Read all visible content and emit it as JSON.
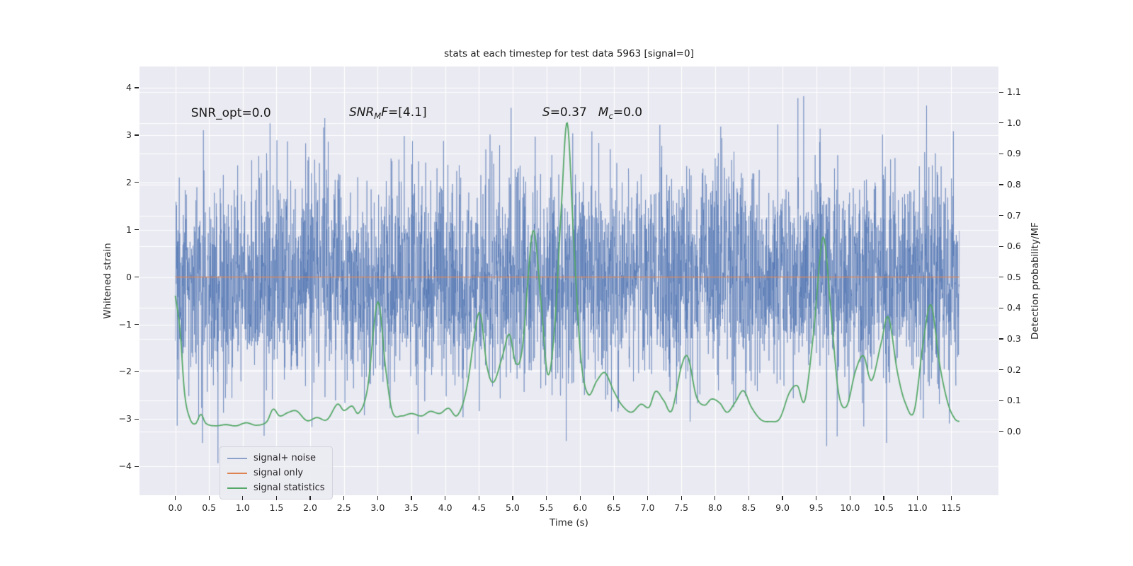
{
  "chart_data": {
    "type": "line",
    "title": "stats at each timestep for test data 5963 [signal=0]",
    "xlabel": "Time (s)",
    "ylabel_left": "Whitened strain",
    "ylabel_right": "Detection probability/MF",
    "xlim": [
      -0.53,
      12.2
    ],
    "ylim_left": [
      -4.61,
      4.45
    ],
    "ylim_right": [
      -0.207,
      1.183
    ],
    "grid": true,
    "colors": {
      "plot_bg": "#EAEAF2",
      "grid": "#FFFFFF",
      "text": "#262626",
      "noise_blue": "#4C72B0",
      "signal_orange": "#DD8452",
      "stats_green": "#55A868"
    },
    "xticks": [
      {
        "v": 0.0,
        "label": "0.0"
      },
      {
        "v": 0.5,
        "label": "0.5"
      },
      {
        "v": 1.0,
        "label": "1.0"
      },
      {
        "v": 1.5,
        "label": "1.5"
      },
      {
        "v": 2.0,
        "label": "2.0"
      },
      {
        "v": 2.5,
        "label": "2.5"
      },
      {
        "v": 3.0,
        "label": "3.0"
      },
      {
        "v": 3.5,
        "label": "3.5"
      },
      {
        "v": 4.0,
        "label": "4.0"
      },
      {
        "v": 4.5,
        "label": "4.5"
      },
      {
        "v": 5.0,
        "label": "5.0"
      },
      {
        "v": 5.5,
        "label": "5.5"
      },
      {
        "v": 6.0,
        "label": "6.0"
      },
      {
        "v": 6.5,
        "label": "6.5"
      },
      {
        "v": 7.0,
        "label": "7.0"
      },
      {
        "v": 7.5,
        "label": "7.5"
      },
      {
        "v": 8.0,
        "label": "8.0"
      },
      {
        "v": 8.5,
        "label": "8.5"
      },
      {
        "v": 9.0,
        "label": "9.0"
      },
      {
        "v": 9.5,
        "label": "9.5"
      },
      {
        "v": 10.0,
        "label": "10.0"
      },
      {
        "v": 10.5,
        "label": "10.5"
      },
      {
        "v": 11.0,
        "label": "11.0"
      },
      {
        "v": 11.5,
        "label": "11.5"
      }
    ],
    "yticks_left": [
      {
        "v": 4,
        "label": "4"
      },
      {
        "v": 3,
        "label": "3"
      },
      {
        "v": 2,
        "label": "2"
      },
      {
        "v": 1,
        "label": "1"
      },
      {
        "v": 0,
        "label": "0"
      },
      {
        "v": -1,
        "label": "−1"
      },
      {
        "v": -2,
        "label": "−2"
      },
      {
        "v": -3,
        "label": "−3"
      },
      {
        "v": -4,
        "label": "−4"
      }
    ],
    "yticks_right": [
      {
        "v": 1.1,
        "label": "1.1"
      },
      {
        "v": 1.0,
        "label": "1.0"
      },
      {
        "v": 0.9,
        "label": "0.9"
      },
      {
        "v": 0.8,
        "label": "0.8"
      },
      {
        "v": 0.7,
        "label": "0.7"
      },
      {
        "v": 0.6,
        "label": "0.6"
      },
      {
        "v": 0.5,
        "label": "0.5"
      },
      {
        "v": 0.4,
        "label": "0.4"
      },
      {
        "v": 0.3,
        "label": "0.3"
      },
      {
        "v": 0.2,
        "label": "0.2"
      },
      {
        "v": 0.1,
        "label": "0.1"
      },
      {
        "v": 0.0,
        "label": "0.0"
      }
    ],
    "annotations": [
      {
        "name": "snr-opt",
        "parts": [
          "SNR_opt=0.0"
        ],
        "fx": 0.06,
        "fy": 0.109
      },
      {
        "name": "snr-mf",
        "parts": [
          "SNR",
          "M",
          "F",
          "=[4.1]"
        ],
        "fx": 0.244,
        "fy": 0.109
      },
      {
        "name": "stat-values",
        "parts": [
          "S",
          "=0.37",
          "M",
          "c",
          "=0.0"
        ],
        "fx": 0.469,
        "fy": 0.109
      }
    ],
    "legend": {
      "position": "lower left"
    },
    "series": [
      {
        "name": "signal+ noise",
        "axis": "left",
        "color": "#4C72B0",
        "alpha": 0.6,
        "t_start": 0.0,
        "t_end": 11.62,
        "noise": {
          "seed": 5963,
          "n": 4096,
          "std": 1.1
        }
      },
      {
        "name": "signal only",
        "axis": "left",
        "color": "#DD8452",
        "t_start": 0.0,
        "t_end": 11.62,
        "value": 0.0
      },
      {
        "name": "signal statistics",
        "axis": "right",
        "color": "#55A868",
        "points": [
          [
            0.0,
            0.44
          ],
          [
            0.07,
            0.33
          ],
          [
            0.14,
            0.12
          ],
          [
            0.22,
            0.04
          ],
          [
            0.3,
            0.025
          ],
          [
            0.38,
            0.055
          ],
          [
            0.46,
            0.025
          ],
          [
            0.6,
            0.018
          ],
          [
            0.75,
            0.022
          ],
          [
            0.9,
            0.018
          ],
          [
            1.05,
            0.028
          ],
          [
            1.2,
            0.02
          ],
          [
            1.35,
            0.03
          ],
          [
            1.45,
            0.072
          ],
          [
            1.55,
            0.05
          ],
          [
            1.68,
            0.062
          ],
          [
            1.8,
            0.066
          ],
          [
            1.95,
            0.035
          ],
          [
            2.1,
            0.045
          ],
          [
            2.25,
            0.038
          ],
          [
            2.4,
            0.088
          ],
          [
            2.5,
            0.068
          ],
          [
            2.62,
            0.082
          ],
          [
            2.72,
            0.06
          ],
          [
            2.85,
            0.14
          ],
          [
            3.0,
            0.42
          ],
          [
            3.12,
            0.2
          ],
          [
            3.22,
            0.062
          ],
          [
            3.35,
            0.05
          ],
          [
            3.5,
            0.058
          ],
          [
            3.65,
            0.05
          ],
          [
            3.78,
            0.065
          ],
          [
            3.92,
            0.058
          ],
          [
            4.05,
            0.075
          ],
          [
            4.18,
            0.052
          ],
          [
            4.32,
            0.14
          ],
          [
            4.5,
            0.385
          ],
          [
            4.62,
            0.21
          ],
          [
            4.72,
            0.16
          ],
          [
            4.85,
            0.245
          ],
          [
            4.95,
            0.315
          ],
          [
            5.05,
            0.22
          ],
          [
            5.15,
            0.28
          ],
          [
            5.3,
            0.65
          ],
          [
            5.42,
            0.42
          ],
          [
            5.52,
            0.185
          ],
          [
            5.62,
            0.33
          ],
          [
            5.72,
            0.72
          ],
          [
            5.81,
            1.0
          ],
          [
            5.91,
            0.6
          ],
          [
            6.01,
            0.24
          ],
          [
            6.12,
            0.12
          ],
          [
            6.25,
            0.165
          ],
          [
            6.37,
            0.19
          ],
          [
            6.5,
            0.13
          ],
          [
            6.62,
            0.085
          ],
          [
            6.76,
            0.062
          ],
          [
            6.9,
            0.088
          ],
          [
            7.02,
            0.078
          ],
          [
            7.12,
            0.13
          ],
          [
            7.24,
            0.1
          ],
          [
            7.36,
            0.068
          ],
          [
            7.5,
            0.21
          ],
          [
            7.6,
            0.24
          ],
          [
            7.72,
            0.115
          ],
          [
            7.84,
            0.085
          ],
          [
            7.95,
            0.105
          ],
          [
            8.07,
            0.092
          ],
          [
            8.18,
            0.062
          ],
          [
            8.3,
            0.095
          ],
          [
            8.42,
            0.132
          ],
          [
            8.54,
            0.078
          ],
          [
            8.68,
            0.038
          ],
          [
            8.82,
            0.032
          ],
          [
            8.96,
            0.042
          ],
          [
            9.1,
            0.125
          ],
          [
            9.22,
            0.148
          ],
          [
            9.33,
            0.1
          ],
          [
            9.46,
            0.32
          ],
          [
            9.6,
            0.63
          ],
          [
            9.72,
            0.38
          ],
          [
            9.83,
            0.125
          ],
          [
            9.95,
            0.082
          ],
          [
            10.08,
            0.195
          ],
          [
            10.2,
            0.245
          ],
          [
            10.32,
            0.165
          ],
          [
            10.46,
            0.285
          ],
          [
            10.57,
            0.37
          ],
          [
            10.7,
            0.195
          ],
          [
            10.82,
            0.092
          ],
          [
            10.95,
            0.065
          ],
          [
            11.08,
            0.28
          ],
          [
            11.2,
            0.41
          ],
          [
            11.33,
            0.215
          ],
          [
            11.45,
            0.092
          ],
          [
            11.55,
            0.042
          ],
          [
            11.62,
            0.032
          ]
        ]
      }
    ]
  }
}
